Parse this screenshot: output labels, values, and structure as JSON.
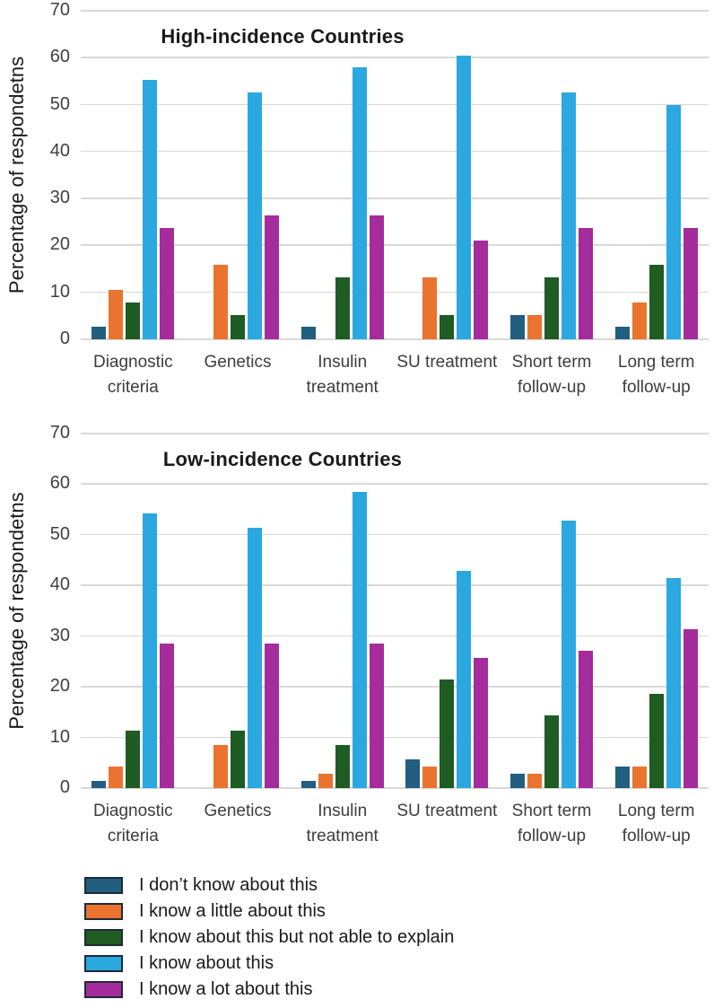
{
  "chart_data": [
    {
      "type": "bar",
      "title": "High-incidence Countries",
      "ylabel": "Percentage of respondetns",
      "xlabel": "",
      "ylim": [
        0,
        70
      ],
      "y_ticks": [
        0,
        10,
        20,
        30,
        40,
        50,
        60,
        70
      ],
      "grid": true,
      "legend_position": "bottom-left",
      "categories": [
        "Diagnostic criteria",
        "Genetics",
        "Insulin treatment",
        "SU treatment",
        "Short term follow-up",
        "Long term follow-up"
      ],
      "categories_lines": [
        [
          "Diagnostic",
          "criteria"
        ],
        [
          "Genetics"
        ],
        [
          "Insulin",
          "treatment"
        ],
        [
          "SU treatment"
        ],
        [
          "Short term",
          "follow-up"
        ],
        [
          "Long term",
          "follow-up"
        ]
      ],
      "series": [
        {
          "name": "I don’t know about this",
          "color": "#215e80",
          "values": [
            2.63,
            0,
            2.63,
            0,
            5.26,
            2.63
          ]
        },
        {
          "name": "I know a little about this",
          "color": "#ea742f",
          "values": [
            10.53,
            15.79,
            0,
            13.16,
            5.26,
            7.89
          ]
        },
        {
          "name": "I know about this but not able to explain",
          "color": "#1e5c24",
          "values": [
            7.89,
            5.26,
            13.16,
            5.26,
            13.16,
            15.79
          ]
        },
        {
          "name": "I know about this",
          "color": "#2aa8df",
          "values": [
            55.26,
            52.63,
            57.89,
            60.53,
            52.63,
            50.0
          ]
        },
        {
          "name": "I know a lot about this",
          "color": "#a52c9c",
          "values": [
            23.68,
            26.32,
            26.32,
            21.05,
            23.68,
            23.68
          ]
        }
      ]
    },
    {
      "type": "bar",
      "title": "Low-incidence Countries",
      "ylabel": "Percentage of respondetns",
      "xlabel": "",
      "ylim": [
        0,
        70
      ],
      "y_ticks": [
        0,
        10,
        20,
        30,
        40,
        50,
        60,
        70
      ],
      "grid": true,
      "legend_position": "bottom-left",
      "categories": [
        "Diagnostic criteria",
        "Genetics",
        "Insulin treatment",
        "SU treatment",
        "Short term follow-up",
        "Long term follow-up"
      ],
      "categories_lines": [
        [
          "Diagnostic",
          "criteria"
        ],
        [
          "Genetics"
        ],
        [
          "Insulin",
          "treatment"
        ],
        [
          "SU treatment"
        ],
        [
          "Short term",
          "follow-up"
        ],
        [
          "Long term",
          "follow-up"
        ]
      ],
      "series": [
        {
          "name": "I don’t know about this",
          "color": "#215e80",
          "values": [
            1.43,
            0,
            1.43,
            5.71,
            2.86,
            4.29
          ]
        },
        {
          "name": "I know a little about this",
          "color": "#ea742f",
          "values": [
            4.29,
            8.57,
            2.86,
            4.29,
            2.86,
            4.29
          ]
        },
        {
          "name": "I know about this but not able to explain",
          "color": "#1e5c24",
          "values": [
            11.43,
            11.43,
            8.57,
            21.43,
            14.29,
            18.57
          ]
        },
        {
          "name": "I know about this",
          "color": "#2aa8df",
          "values": [
            54.29,
            51.43,
            58.57,
            42.86,
            52.86,
            41.43
          ]
        },
        {
          "name": "I know a lot about this",
          "color": "#a52c9c",
          "values": [
            28.57,
            28.57,
            28.57,
            25.71,
            27.14,
            31.43
          ]
        }
      ]
    }
  ],
  "legend": {
    "swatch_border_color": "#1f2a35",
    "items": [
      {
        "label": "I don’t know about this",
        "color": "#215e80"
      },
      {
        "label": "I know a little about this",
        "color": "#ea742f"
      },
      {
        "label": "I know about this but not able to explain",
        "color": "#1e5c24"
      },
      {
        "label": "I know about this",
        "color": "#2aa8df"
      },
      {
        "label": "I know a lot about this",
        "color": "#a52c9c"
      }
    ]
  },
  "style": {
    "gridline_color": "#d9d9d9",
    "tick_label_color": "#404040",
    "category_label_color": "#3d3d3d"
  }
}
